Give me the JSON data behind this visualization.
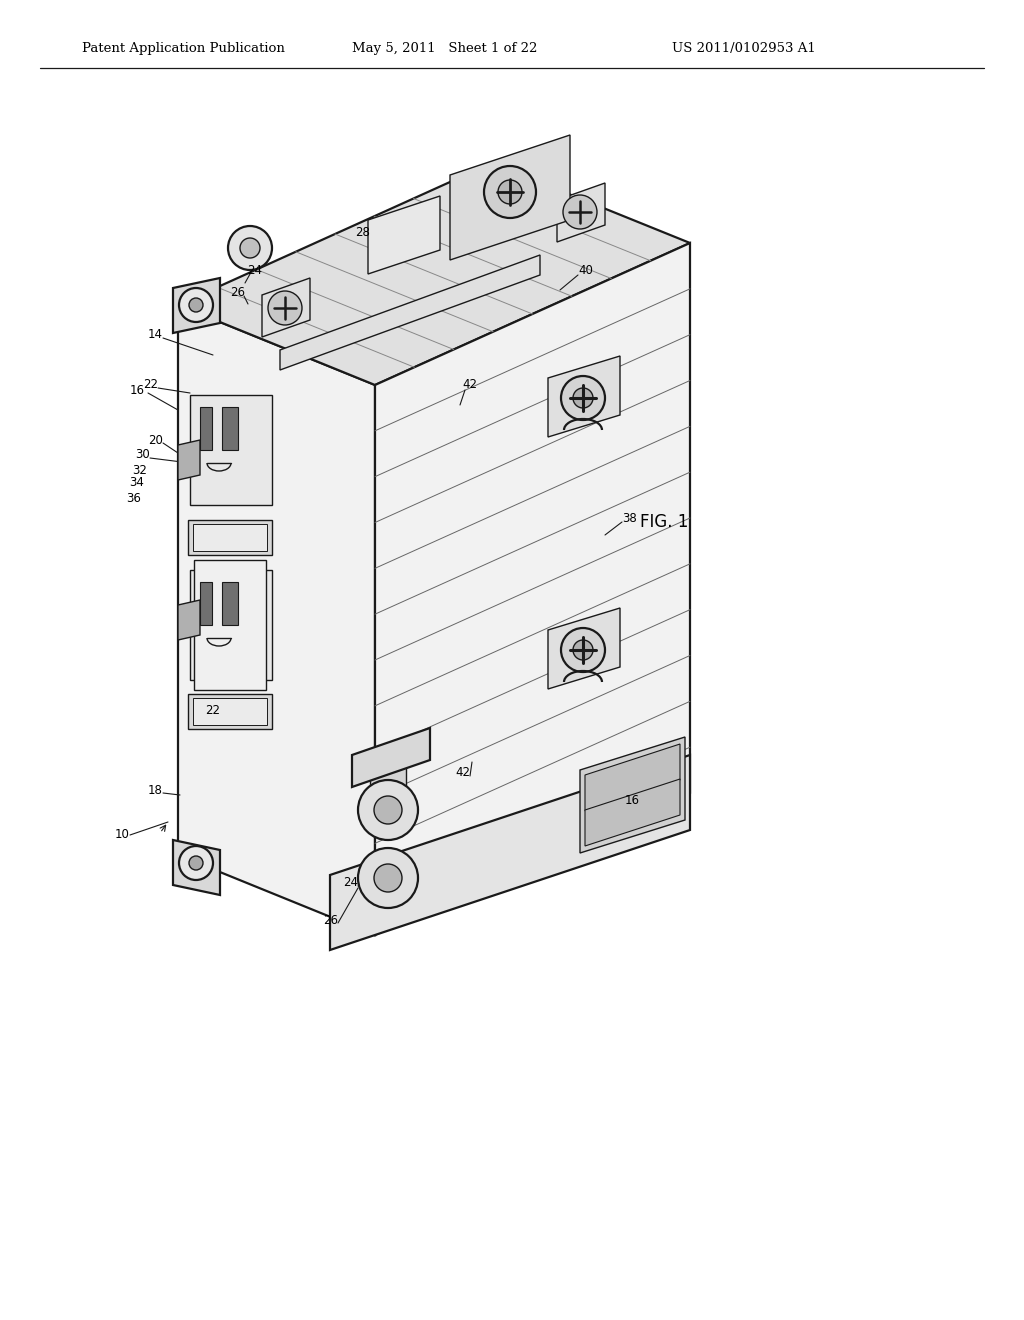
{
  "background_color": "#ffffff",
  "header_left": "Patent Application Publication",
  "header_mid": "May 5, 2011   Sheet 1 of 22",
  "header_right": "US 2011/0102953 A1",
  "fig_label": "FIG. 1",
  "header_fontsize": 9.5,
  "ref_fontsize": 8.5,
  "fig_label_fontsize": 12,
  "line_color": "#1a1a1a",
  "fill_light": "#f2f2f2",
  "fill_mid": "#e0e0e0",
  "fill_dark": "#c8c8c8",
  "fill_slot": "#707070"
}
